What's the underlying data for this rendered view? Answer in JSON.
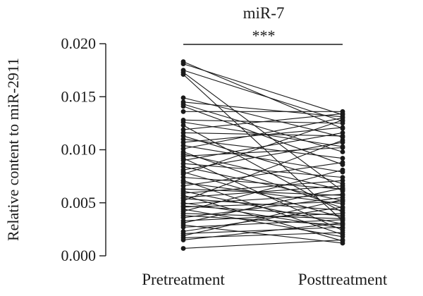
{
  "chart_data": {
    "type": "line",
    "title": "miR-7",
    "significance": "***",
    "ylabel": "Relative content to miR-2911",
    "xlabel": "",
    "categories": [
      "Pretreatment",
      "Posttreatment"
    ],
    "ylim": [
      0,
      0.02
    ],
    "yticks": [
      "0.000",
      "0.005",
      "0.010",
      "0.015",
      "0.020"
    ],
    "ytick_values": [
      0,
      0.005,
      0.01,
      0.015,
      0.02
    ],
    "grid": false,
    "legend": "none",
    "color": "#1a1a1a",
    "pairs": [
      [
        0.0183,
        0.012
      ],
      [
        0.0181,
        0.0133
      ],
      [
        0.0175,
        0.0127
      ],
      [
        0.0173,
        0.0061
      ],
      [
        0.0171,
        0.0033
      ],
      [
        0.0149,
        0.0112
      ],
      [
        0.0145,
        0.0131
      ],
      [
        0.0143,
        0.0098
      ],
      [
        0.0141,
        0.0086
      ],
      [
        0.0136,
        0.0136
      ],
      [
        0.0128,
        0.0125
      ],
      [
        0.0126,
        0.0103
      ],
      [
        0.0123,
        0.0041
      ],
      [
        0.0119,
        0.0134
      ],
      [
        0.0116,
        0.0113
      ],
      [
        0.0113,
        0.0068
      ],
      [
        0.011,
        0.0092
      ],
      [
        0.0107,
        0.0121
      ],
      [
        0.0104,
        0.0079
      ],
      [
        0.0101,
        0.013
      ],
      [
        0.0098,
        0.0045
      ],
      [
        0.0096,
        0.0062
      ],
      [
        0.0094,
        0.0102
      ],
      [
        0.0092,
        0.0024
      ],
      [
        0.009,
        0.0116
      ],
      [
        0.0087,
        0.0074
      ],
      [
        0.0084,
        0.0052
      ],
      [
        0.0081,
        0.0107
      ],
      [
        0.0079,
        0.0036
      ],
      [
        0.0077,
        0.0128
      ],
      [
        0.0074,
        0.0063
      ],
      [
        0.0071,
        0.002
      ],
      [
        0.0069,
        0.0049
      ],
      [
        0.0066,
        0.0088
      ],
      [
        0.0063,
        0.0057
      ],
      [
        0.0061,
        0.003
      ],
      [
        0.0059,
        0.0071
      ],
      [
        0.0057,
        0.0014
      ],
      [
        0.0055,
        0.0066
      ],
      [
        0.0054,
        0.0043
      ],
      [
        0.0052,
        0.0109
      ],
      [
        0.005,
        0.0026
      ],
      [
        0.0049,
        0.0058
      ],
      [
        0.0047,
        0.0038
      ],
      [
        0.0046,
        0.0051
      ],
      [
        0.0044,
        0.0018
      ],
      [
        0.0042,
        0.0081
      ],
      [
        0.004,
        0.0035
      ],
      [
        0.0038,
        0.0029
      ],
      [
        0.0036,
        0.0055
      ],
      [
        0.0033,
        0.004
      ],
      [
        0.0031,
        0.0064
      ],
      [
        0.0029,
        0.0012
      ],
      [
        0.0027,
        0.0034
      ],
      [
        0.0023,
        0.0046
      ],
      [
        0.0021,
        0.0027
      ],
      [
        0.0019,
        0.0053
      ],
      [
        0.0017,
        0.0022
      ],
      [
        0.0015,
        0.0031
      ],
      [
        0.0007,
        0.0015
      ]
    ]
  }
}
